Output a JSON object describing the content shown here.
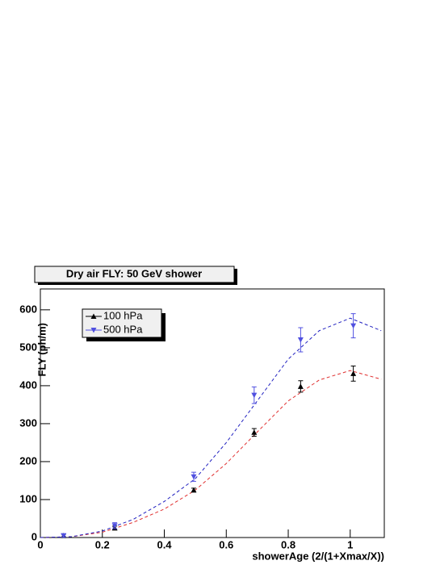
{
  "chart_data": {
    "type": "scatter",
    "title": "Dry air FLY: 50 GeV shower",
    "x_label": "showerAge (2/(1+Xmax/X))",
    "y_label": "FLY (ph/m)",
    "xlim": [
      0,
      1.11
    ],
    "ylim": [
      0,
      655
    ],
    "xticks": [
      0,
      0.2,
      0.4,
      0.6,
      0.8,
      1
    ],
    "yticks": [
      0,
      100,
      200,
      300,
      400,
      500,
      600
    ],
    "legend": "upper left",
    "series": [
      {
        "name": "100 hPa",
        "color": "#000000",
        "marker_color": "#000000",
        "fit_color": "#e03030",
        "x": [
          0.075,
          0.24,
          0.495,
          0.69,
          0.84,
          1.01
        ],
        "values": [
          5,
          25,
          125,
          277,
          398,
          432
        ],
        "errors": [
          4,
          5,
          5,
          10,
          15,
          20
        ],
        "fit_x": [
          0,
          0.1,
          0.2,
          0.3,
          0.4,
          0.5,
          0.6,
          0.7,
          0.8,
          0.9,
          1.0,
          1.1
        ],
        "fit_values": [
          0,
          2,
          14,
          40,
          75,
          125,
          195,
          278,
          360,
          415,
          440,
          417
        ]
      },
      {
        "name": "500 hPa",
        "color": "#5050e0",
        "marker_color": "#5050e0",
        "fit_color": "#2020c0",
        "x": [
          0.075,
          0.24,
          0.495,
          0.69,
          0.84,
          1.01
        ],
        "values": [
          5,
          31,
          160,
          375,
          521,
          558
        ],
        "errors": [
          4,
          8,
          12,
          22,
          32,
          32
        ],
        "fit_x": [
          0,
          0.1,
          0.2,
          0.3,
          0.4,
          0.5,
          0.6,
          0.7,
          0.8,
          0.9,
          1.0,
          1.1
        ],
        "fit_values": [
          0,
          2,
          17,
          48,
          95,
          155,
          250,
          360,
          470,
          545,
          578,
          545
        ]
      }
    ]
  }
}
